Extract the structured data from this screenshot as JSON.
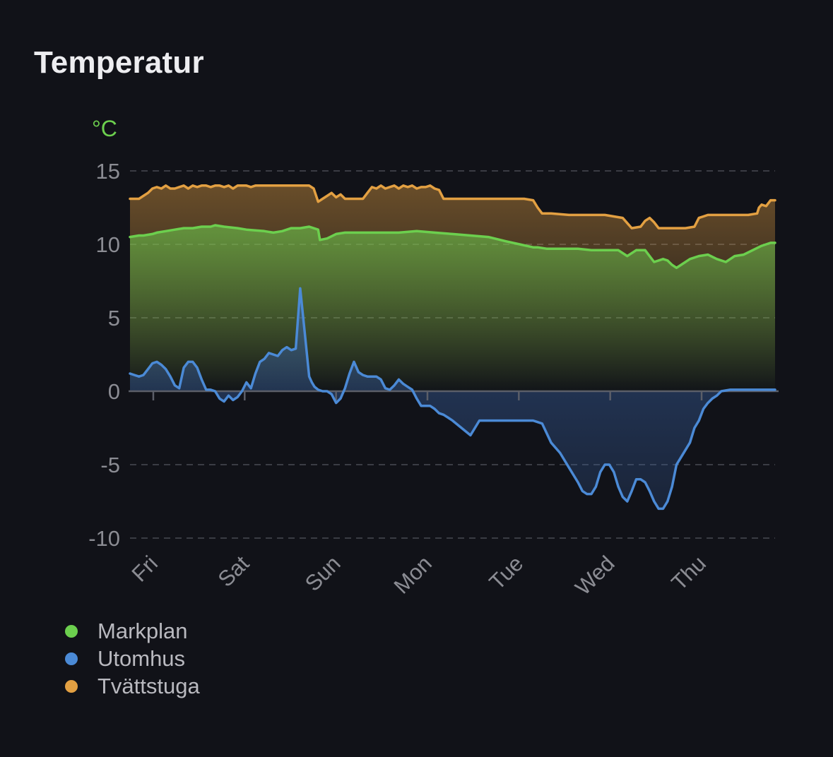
{
  "card": {
    "title": "Temperatur"
  },
  "chart_data": {
    "type": "area",
    "title": "",
    "unit_label": "°C",
    "ylim": [
      -10,
      15
    ],
    "y_ticks": [
      "15",
      "10",
      "5",
      "0",
      "-5",
      "-10"
    ],
    "y_tick_values": [
      15,
      10,
      5,
      0,
      -5,
      -10
    ],
    "x_range": [
      0,
      7.2
    ],
    "x_tick_labels": [
      "Fri",
      "Sat",
      "Sun",
      "Mon",
      "Tue",
      "Wed",
      "Thu"
    ],
    "x_tick_positions": [
      0.26,
      1.28,
      2.3,
      3.32,
      4.34,
      5.36,
      6.38
    ],
    "grid": true,
    "legend_position": "bottom-left",
    "series": [
      {
        "name": "Markplan",
        "color": "#6ccf4e",
        "x": [
          0,
          0.1,
          0.15,
          0.25,
          0.3,
          0.4,
          0.5,
          0.6,
          0.7,
          0.8,
          0.9,
          0.95,
          1.05,
          1.2,
          1.3,
          1.5,
          1.6,
          1.7,
          1.75,
          1.8,
          1.9,
          2.0,
          2.1,
          2.12,
          2.2,
          2.3,
          2.4,
          2.5,
          2.6,
          2.8,
          3.0,
          3.2,
          3.4,
          3.6,
          3.8,
          4.0,
          4.2,
          4.35,
          4.5,
          4.55,
          4.65,
          4.75,
          4.85,
          5.0,
          5.15,
          5.25,
          5.35,
          5.45,
          5.55,
          5.65,
          5.75,
          5.85,
          5.95,
          6.0,
          6.05,
          6.1,
          6.15,
          6.25,
          6.35,
          6.45,
          6.55,
          6.65,
          6.75,
          6.85,
          6.95,
          7.05,
          7.15,
          7.2
        ],
        "values": [
          10.5,
          10.6,
          10.6,
          10.7,
          10.8,
          10.9,
          11.0,
          11.1,
          11.1,
          11.2,
          11.2,
          11.3,
          11.2,
          11.1,
          11.0,
          10.9,
          10.8,
          10.9,
          11.0,
          11.1,
          11.1,
          11.2,
          11.0,
          10.3,
          10.4,
          10.7,
          10.8,
          10.8,
          10.8,
          10.8,
          10.8,
          10.9,
          10.8,
          10.7,
          10.6,
          10.5,
          10.2,
          10.0,
          9.8,
          9.8,
          9.7,
          9.7,
          9.7,
          9.7,
          9.6,
          9.6,
          9.6,
          9.6,
          9.2,
          9.6,
          9.6,
          8.8,
          9.0,
          8.9,
          8.6,
          8.4,
          8.6,
          9.0,
          9.2,
          9.3,
          9.0,
          8.8,
          9.2,
          9.3,
          9.6,
          9.9,
          10.1,
          10.1
        ]
      },
      {
        "name": "Utomhus",
        "color": "#4b8ad6",
        "x": [
          0,
          0.05,
          0.1,
          0.15,
          0.2,
          0.25,
          0.3,
          0.35,
          0.4,
          0.45,
          0.5,
          0.55,
          0.6,
          0.65,
          0.7,
          0.75,
          0.8,
          0.85,
          0.9,
          0.95,
          1.0,
          1.05,
          1.1,
          1.15,
          1.2,
          1.25,
          1.3,
          1.35,
          1.4,
          1.45,
          1.5,
          1.55,
          1.6,
          1.65,
          1.7,
          1.75,
          1.8,
          1.85,
          1.9,
          1.95,
          2.0,
          2.03,
          2.06,
          2.1,
          2.15,
          2.2,
          2.25,
          2.3,
          2.35,
          2.4,
          2.45,
          2.5,
          2.55,
          2.6,
          2.65,
          2.7,
          2.75,
          2.8,
          2.85,
          2.9,
          2.95,
          3.0,
          3.05,
          3.1,
          3.15,
          3.2,
          3.25,
          3.3,
          3.35,
          3.4,
          3.45,
          3.5,
          3.55,
          3.6,
          3.7,
          3.8,
          3.9,
          4.0,
          4.05,
          4.1,
          4.15,
          4.2,
          4.3,
          4.4,
          4.45,
          4.5,
          4.6,
          4.7,
          4.8,
          4.9,
          5.0,
          5.05,
          5.1,
          5.15,
          5.2,
          5.25,
          5.3,
          5.35,
          5.4,
          5.45,
          5.5,
          5.55,
          5.6,
          5.65,
          5.7,
          5.75,
          5.8,
          5.85,
          5.9,
          5.95,
          6.0,
          6.05,
          6.1,
          6.15,
          6.2,
          6.25,
          6.3,
          6.35,
          6.4,
          6.45,
          6.5,
          6.55,
          6.6,
          6.7,
          6.8,
          6.9,
          7.0,
          7.1,
          7.2
        ],
        "values": [
          1.2,
          1.1,
          1.0,
          1.1,
          1.5,
          1.9,
          2.0,
          1.8,
          1.5,
          1.0,
          0.4,
          0.2,
          1.6,
          2.0,
          2.0,
          1.6,
          0.8,
          0.1,
          0.1,
          0.0,
          -0.5,
          -0.7,
          -0.3,
          -0.6,
          -0.4,
          0.0,
          0.6,
          0.2,
          1.2,
          2.0,
          2.2,
          2.6,
          2.5,
          2.4,
          2.8,
          3.0,
          2.8,
          2.9,
          7.0,
          4.0,
          1.0,
          0.6,
          0.3,
          0.1,
          0.0,
          0.0,
          -0.2,
          -0.8,
          -0.5,
          0.2,
          1.2,
          2.0,
          1.3,
          1.1,
          1.0,
          1.0,
          1.0,
          0.8,
          0.2,
          0.1,
          0.4,
          0.8,
          0.5,
          0.3,
          0.1,
          -0.5,
          -1.0,
          -1.0,
          -1.0,
          -1.2,
          -1.5,
          -1.6,
          -1.8,
          -2.0,
          -2.5,
          -3.0,
          -2.0,
          -2.0,
          -2.0,
          -2.0,
          -2.0,
          -2.0,
          -2.0,
          -2.0,
          -2.0,
          -2.0,
          -2.2,
          -3.5,
          -4.2,
          -5.2,
          -6.2,
          -6.8,
          -7.0,
          -7.0,
          -6.5,
          -5.5,
          -5.0,
          -5.0,
          -5.5,
          -6.5,
          -7.2,
          -7.5,
          -6.8,
          -6.0,
          -6.0,
          -6.2,
          -6.8,
          -7.5,
          -8.0,
          -8.0,
          -7.5,
          -6.5,
          -5.0,
          -4.5,
          -4.0,
          -3.5,
          -2.5,
          -2.0,
          -1.2,
          -0.8,
          -0.5,
          -0.3,
          0.0,
          0.1,
          0.1,
          0.1,
          0.1,
          0.1,
          0.1
        ]
      },
      {
        "name": "Tvättstuga",
        "color": "#e3a042",
        "x": [
          0,
          0.05,
          0.1,
          0.15,
          0.2,
          0.25,
          0.3,
          0.35,
          0.4,
          0.45,
          0.5,
          0.55,
          0.6,
          0.65,
          0.7,
          0.75,
          0.8,
          0.85,
          0.9,
          0.95,
          1.0,
          1.05,
          1.1,
          1.15,
          1.2,
          1.25,
          1.3,
          1.35,
          1.4,
          1.5,
          1.6,
          1.7,
          1.8,
          1.9,
          2.0,
          2.05,
          2.1,
          2.15,
          2.2,
          2.25,
          2.3,
          2.35,
          2.4,
          2.5,
          2.6,
          2.65,
          2.7,
          2.75,
          2.8,
          2.85,
          2.9,
          2.95,
          3.0,
          3.05,
          3.1,
          3.15,
          3.2,
          3.25,
          3.3,
          3.35,
          3.4,
          3.45,
          3.5,
          3.6,
          3.8,
          4.0,
          4.2,
          4.4,
          4.5,
          4.55,
          4.6,
          4.7,
          4.9,
          5.1,
          5.3,
          5.5,
          5.6,
          5.7,
          5.75,
          5.8,
          5.85,
          5.9,
          5.95,
          6.0,
          6.1,
          6.2,
          6.3,
          6.35,
          6.4,
          6.45,
          6.5,
          6.6,
          6.7,
          6.8,
          6.9,
          7.0,
          7.02,
          7.05,
          7.1,
          7.15,
          7.2
        ],
        "values": [
          13.1,
          13.1,
          13.1,
          13.3,
          13.5,
          13.8,
          13.9,
          13.8,
          14.0,
          13.8,
          13.8,
          13.9,
          14.0,
          13.8,
          14.0,
          13.9,
          14.0,
          14.0,
          13.9,
          14.0,
          14.0,
          13.9,
          14.0,
          13.8,
          14.0,
          14.0,
          14.0,
          13.9,
          14.0,
          14.0,
          14.0,
          14.0,
          14.0,
          14.0,
          14.0,
          13.8,
          12.9,
          13.1,
          13.3,
          13.5,
          13.2,
          13.4,
          13.1,
          13.1,
          13.1,
          13.5,
          13.9,
          13.8,
          14.0,
          13.8,
          13.9,
          14.0,
          13.8,
          14.0,
          13.9,
          14.0,
          13.8,
          13.9,
          13.9,
          14.0,
          13.8,
          13.7,
          13.1,
          13.1,
          13.1,
          13.1,
          13.1,
          13.1,
          13.0,
          12.5,
          12.1,
          12.1,
          12.0,
          12.0,
          12.0,
          11.8,
          11.1,
          11.2,
          11.6,
          11.8,
          11.5,
          11.1,
          11.1,
          11.1,
          11.1,
          11.1,
          11.2,
          11.8,
          11.9,
          12.0,
          12.0,
          12.0,
          12.0,
          12.0,
          12.0,
          12.1,
          12.5,
          12.7,
          12.6,
          13.0,
          13.0
        ]
      }
    ]
  }
}
